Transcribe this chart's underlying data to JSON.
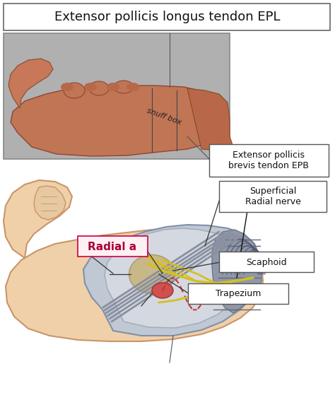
{
  "title": "Extensor pollicis longus tendon EPL",
  "bg": "#ffffff",
  "photo_bg": "#b0b0b0",
  "photo_hand_skin": "#c87a5a",
  "photo_hand_dark": "#a05a3a",
  "photo_thumb_skin": "#d08060",
  "illus_skin": "#f0d0a8",
  "illus_skin_edge": "#c8956a",
  "illus_tendon_bg": "#a0a8b0",
  "illus_tendon_lines": "#707880",
  "illus_wrist_gray": "#8090a0",
  "nerve_yellow": "#d4c020",
  "nerve_yellow2": "#c8b800",
  "artery_red": "#c83030",
  "bone_tan": "#c8b888",
  "snuff_label": "snuff box",
  "epl_label": "Extensor pollicis longus tendon EPL",
  "epb_label": "Extensor pollicis\nbrevis tendon EPB",
  "radial_label": "Radial a",
  "superficial_label": "Superficial\nRadial nerve",
  "scaphoid_label": "Scaphoid",
  "trapezium_label": "Trapezium",
  "label_fs": 9,
  "title_fs": 13
}
